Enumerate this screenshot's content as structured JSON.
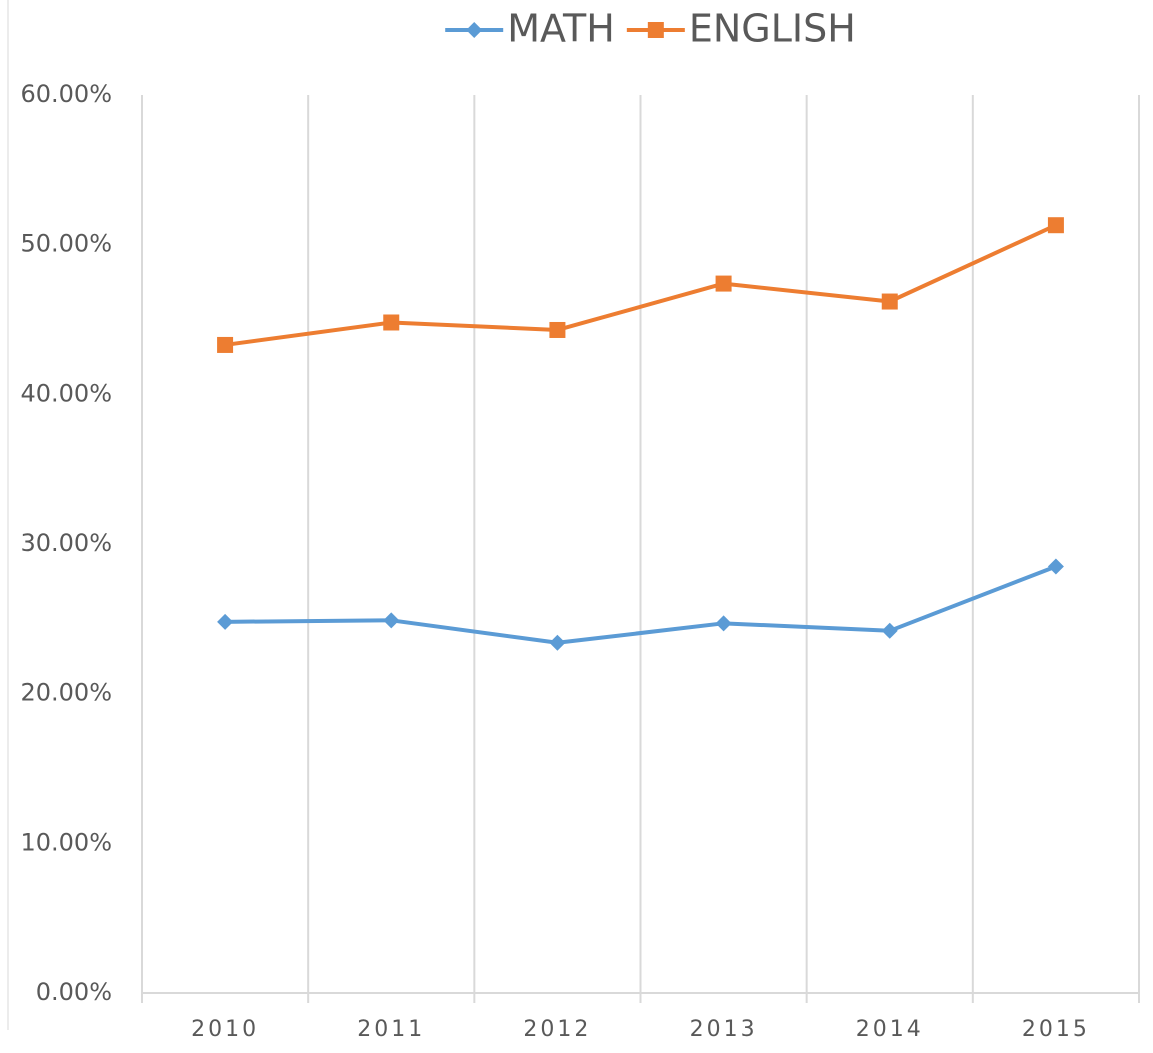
{
  "chart_data": {
    "type": "line",
    "categories": [
      "2010",
      "2011",
      "2012",
      "2013",
      "2014",
      "2015"
    ],
    "series": [
      {
        "name": "MATH",
        "color": "#5b9bd5",
        "marker": "diamond",
        "values": [
          24.8,
          24.9,
          23.4,
          24.7,
          24.2,
          28.5
        ]
      },
      {
        "name": "ENGLISH",
        "color": "#ed7d31",
        "marker": "square",
        "values": [
          43.3,
          44.8,
          44.3,
          47.4,
          46.2,
          51.3
        ]
      }
    ],
    "ylim": [
      0,
      60
    ],
    "yticks": [
      {
        "value": 0,
        "label": "0.00%"
      },
      {
        "value": 10,
        "label": "10.00%"
      },
      {
        "value": 20,
        "label": "20.00%"
      },
      {
        "value": 30,
        "label": "30.00%"
      },
      {
        "value": 40,
        "label": "40.00%"
      },
      {
        "value": 50,
        "label": "50.00%"
      },
      {
        "value": 60,
        "label": "60.00%"
      }
    ],
    "grid": true,
    "legend": "top"
  }
}
